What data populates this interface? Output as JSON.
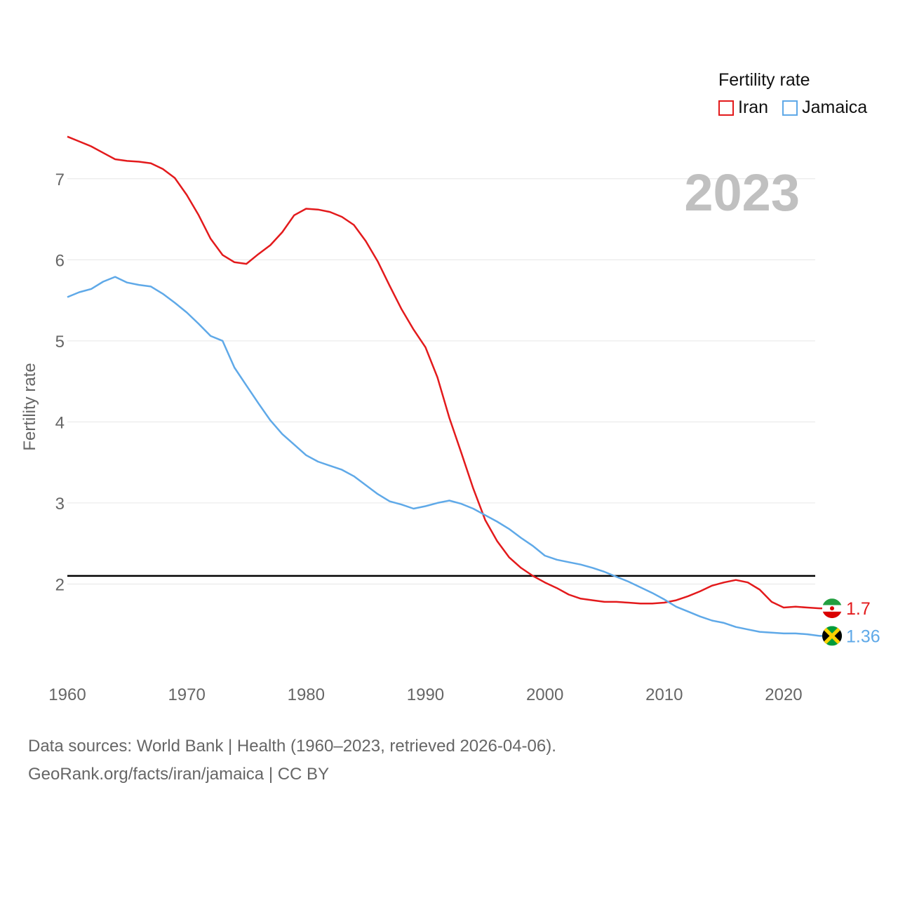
{
  "chart_data": {
    "type": "line",
    "year_label": "2023",
    "ylabel": "Fertility rate",
    "xlim": [
      1960,
      2023
    ],
    "ylim": [
      1.0,
      7.5
    ],
    "x_ticks": [
      1960,
      1970,
      1980,
      1990,
      2000,
      2010,
      2020
    ],
    "y_ticks": [
      2,
      3,
      4,
      5,
      6,
      7
    ],
    "reference_line": 2.1,
    "legend": {
      "title": "Fertility rate"
    },
    "x": [
      1960,
      1961,
      1962,
      1963,
      1964,
      1965,
      1966,
      1967,
      1968,
      1969,
      1970,
      1971,
      1972,
      1973,
      1974,
      1975,
      1976,
      1977,
      1978,
      1979,
      1980,
      1981,
      1982,
      1983,
      1984,
      1985,
      1986,
      1987,
      1988,
      1989,
      1990,
      1991,
      1992,
      1993,
      1994,
      1995,
      1996,
      1997,
      1998,
      1999,
      2000,
      2001,
      2002,
      2003,
      2004,
      2005,
      2006,
      2007,
      2008,
      2009,
      2010,
      2011,
      2012,
      2013,
      2014,
      2015,
      2016,
      2017,
      2018,
      2019,
      2020,
      2021,
      2022,
      2023
    ],
    "series": [
      {
        "name": "Iran",
        "color": "#e31a1c",
        "end_label": "1.7",
        "flag_icon": "iran-flag-icon",
        "values": [
          7.52,
          7.46,
          7.4,
          7.32,
          7.24,
          7.22,
          7.21,
          7.19,
          7.12,
          7.01,
          6.8,
          6.55,
          6.26,
          6.06,
          5.97,
          5.95,
          6.07,
          6.18,
          6.34,
          6.55,
          6.63,
          6.62,
          6.59,
          6.53,
          6.43,
          6.23,
          5.98,
          5.68,
          5.39,
          5.14,
          4.92,
          4.55,
          4.05,
          3.62,
          3.18,
          2.79,
          2.53,
          2.33,
          2.2,
          2.1,
          2.02,
          1.95,
          1.87,
          1.82,
          1.8,
          1.78,
          1.78,
          1.77,
          1.76,
          1.76,
          1.77,
          1.8,
          1.85,
          1.91,
          1.98,
          2.02,
          2.05,
          2.02,
          1.93,
          1.78,
          1.71,
          1.72,
          1.71,
          1.7
        ]
      },
      {
        "name": "Jamaica",
        "color": "#5fa9e8",
        "end_label": "1.36",
        "flag_icon": "jamaica-flag-icon",
        "values": [
          5.54,
          5.6,
          5.64,
          5.73,
          5.79,
          5.72,
          5.69,
          5.67,
          5.58,
          5.47,
          5.35,
          5.21,
          5.06,
          5.0,
          4.67,
          4.45,
          4.23,
          4.02,
          3.85,
          3.72,
          3.59,
          3.51,
          3.46,
          3.41,
          3.33,
          3.22,
          3.11,
          3.02,
          2.98,
          2.93,
          2.96,
          3.0,
          3.03,
          2.99,
          2.93,
          2.85,
          2.77,
          2.68,
          2.57,
          2.47,
          2.35,
          2.3,
          2.27,
          2.24,
          2.2,
          2.15,
          2.09,
          2.03,
          1.96,
          1.89,
          1.81,
          1.72,
          1.66,
          1.6,
          1.55,
          1.52,
          1.47,
          1.44,
          1.41,
          1.4,
          1.39,
          1.39,
          1.38,
          1.36
        ]
      }
    ]
  },
  "footer": {
    "line1": "Data sources: World Bank | Health (1960–2023, retrieved 2026-04-06).",
    "line2": "GeoRank.org/facts/iran/jamaica | CC BY"
  }
}
